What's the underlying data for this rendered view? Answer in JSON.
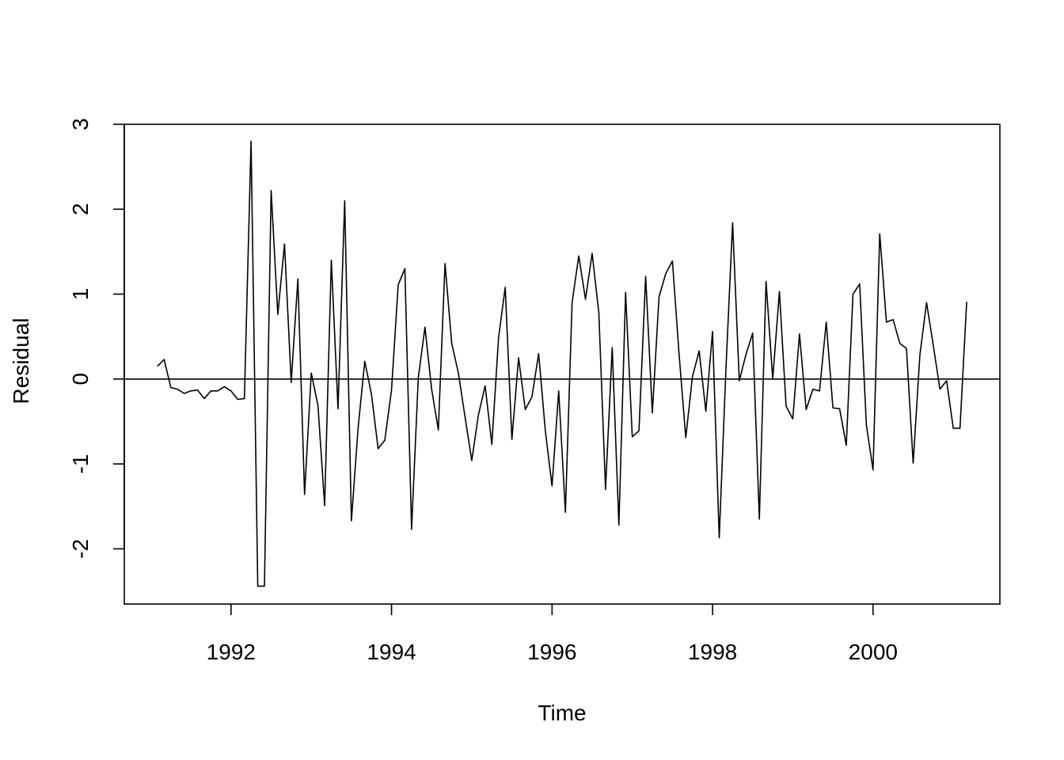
{
  "chart_data": {
    "type": "line",
    "title": "",
    "xlabel": "Time",
    "ylabel": "Residual",
    "xlim": [
      1990.67,
      2001.58
    ],
    "ylim": [
      -2.65,
      3.0
    ],
    "x_ticks": [
      1992,
      1994,
      1996,
      1998,
      2000
    ],
    "x_tick_labels": [
      "1992",
      "1994",
      "1996",
      "1998",
      "2000"
    ],
    "y_ticks": [
      -2,
      -1,
      0,
      1,
      2,
      3
    ],
    "y_tick_labels": [
      "-2",
      "-1",
      "0",
      "1",
      "2",
      "3"
    ],
    "reference_line": 0,
    "grid": false,
    "start": 1991.083,
    "frequency": 12,
    "series": [
      {
        "values": [
          0.15,
          0.23,
          -0.1,
          -0.12,
          -0.17,
          -0.14,
          -0.13,
          -0.23,
          -0.14,
          -0.14,
          -0.09,
          -0.14,
          -0.24,
          -0.23,
          2.8,
          -2.44,
          -2.44,
          2.22,
          0.76,
          1.59,
          -0.04,
          1.18,
          -1.36,
          0.07,
          -0.31,
          -1.49,
          1.4,
          -0.35,
          2.1,
          -1.67,
          -0.58,
          0.21,
          -0.18,
          -0.82,
          -0.72,
          -0.13,
          1.11,
          1.3,
          -1.77,
          0.01,
          0.61,
          -0.12,
          -0.6,
          1.36,
          0.42,
          0.07,
          -0.45,
          -0.96,
          -0.42,
          -0.08,
          -0.77,
          0.48,
          1.08,
          -0.71,
          0.25,
          -0.36,
          -0.21,
          0.3,
          -0.61,
          -1.26,
          -0.14,
          -1.57,
          0.9,
          1.45,
          0.94,
          1.48,
          0.78,
          -1.3,
          0.37,
          -1.72,
          1.02,
          -0.68,
          -0.61,
          1.21,
          -0.4,
          0.97,
          1.24,
          1.39,
          0.29,
          -0.69,
          0.03,
          0.33,
          -0.38,
          0.56,
          -1.87,
          0.11,
          1.84,
          -0.02,
          0.29,
          0.54,
          -1.65,
          1.15,
          0.0,
          1.03,
          -0.32,
          -0.47,
          0.53,
          -0.36,
          -0.12,
          -0.14,
          0.67,
          -0.34,
          -0.35,
          -0.78,
          1.0,
          1.12,
          -0.54,
          -1.07,
          1.71,
          0.67,
          0.7,
          0.42,
          0.36,
          -0.99,
          0.28,
          0.9,
          0.4,
          -0.12,
          -0.02,
          -0.58,
          -0.58,
          0.91
        ]
      }
    ]
  }
}
